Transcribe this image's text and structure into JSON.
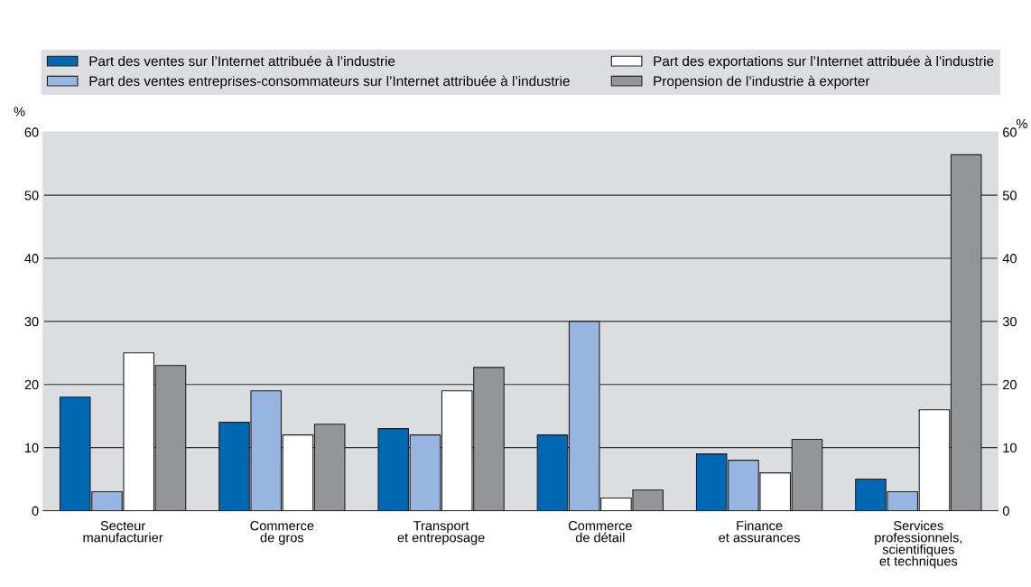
{
  "chart_data": {
    "type": "bar",
    "categories": [
      "Secteur\nmanufacturier",
      "Commerce\nde gros",
      "Transport\net entreposage",
      "Commerce\nde détail",
      "Finance\net assurances",
      "Services\nprofessionnels,\nscientifiques\net techniques"
    ],
    "series": [
      {
        "name": "Part des ventes sur l’Internet attribuée à l’industrie",
        "color": "#0067b3",
        "values": [
          18,
          14,
          13,
          12,
          9,
          5
        ]
      },
      {
        "name": "Part des ventes entreprises-consommateurs sur l’Internet attribuée à l’industrie",
        "color": "#98b4e0",
        "values": [
          3,
          19,
          12,
          30,
          8,
          3
        ]
      },
      {
        "name": "Part des exportations sur l’Internet attribuée à l’industrie",
        "color": "#ffffff",
        "values": [
          25,
          12,
          19,
          2,
          6,
          16
        ]
      },
      {
        "name": "Propension de l’industrie à exporter",
        "color": "#939598",
        "values": [
          23,
          13.7,
          22.7,
          3.3,
          11.3,
          56.4
        ]
      }
    ],
    "ylabel": "%",
    "y2label": "%",
    "ylim": [
      0,
      60
    ],
    "yticks": [
      0,
      10,
      20,
      30,
      40,
      50,
      60
    ],
    "y2lim": [
      0,
      60
    ],
    "y2ticks": [
      0,
      10,
      20,
      30,
      40,
      50,
      60
    ],
    "grid": "y",
    "legend": "top"
  }
}
